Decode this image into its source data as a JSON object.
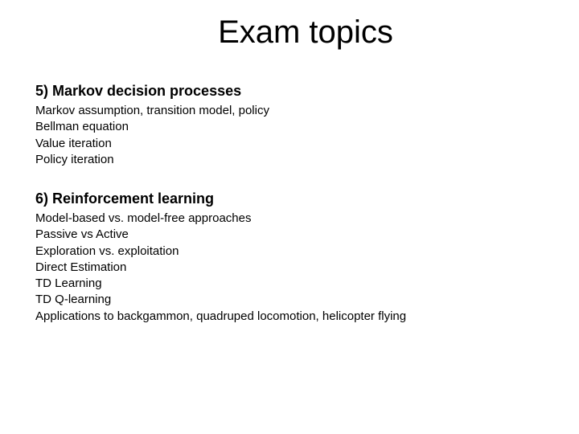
{
  "title": "Exam topics",
  "title_fontsize": 40,
  "heading_fontsize": 18,
  "item_fontsize": 15,
  "background_color": "#ffffff",
  "text_color": "#000000",
  "sections": [
    {
      "heading": "5) Markov decision processes",
      "items": [
        "Markov assumption, transition model, policy",
        "Bellman equation",
        "Value iteration",
        "Policy iteration"
      ]
    },
    {
      "heading": "6) Reinforcement learning",
      "items": [
        "Model-based vs. model-free approaches",
        "Passive vs Active",
        "Exploration vs. exploitation",
        "Direct Estimation",
        "TD Learning",
        "TD Q-learning",
        "Applications to backgammon, quadruped locomotion, helicopter flying"
      ]
    }
  ]
}
